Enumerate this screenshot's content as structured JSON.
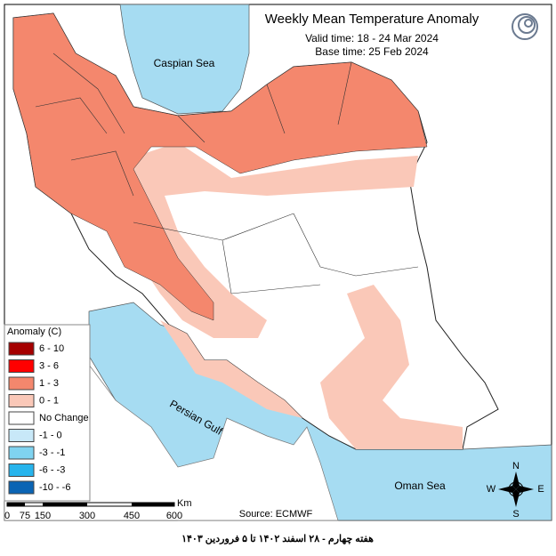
{
  "header": {
    "title": "Weekly Mean Temperature Anomaly",
    "valid_time": "Valid time: 18 - 24 Mar 2024",
    "base_time": "Base time: 25 Feb 2024"
  },
  "map": {
    "labels": [
      "Caspian Sea",
      "Persian Gulf",
      "Oman Sea"
    ],
    "source": "Source: ECMWF"
  },
  "legend": {
    "title": "Anomaly (C)",
    "items": [
      {
        "label": "6 - 10",
        "color": "#a50000"
      },
      {
        "label": "3 - 6",
        "color": "#ff0000"
      },
      {
        "label": "1 - 3",
        "color": "#f4876d"
      },
      {
        "label": "0 - 1",
        "color": "#fac8b8"
      },
      {
        "label": "No Change",
        "color": "#ffffff"
      },
      {
        "label": "-1 - 0",
        "color": "#c8e8f8"
      },
      {
        "label": "-3 - -1",
        "color": "#7fd3f0"
      },
      {
        "label": "-6 - -3",
        "color": "#27b4ec"
      },
      {
        "label": "-10 - -6",
        "color": "#0a64b4"
      }
    ]
  },
  "scale_bar": {
    "labels": [
      "0",
      "75",
      "150",
      "300",
      "450",
      "600"
    ],
    "unit": "Km"
  },
  "compass": {
    "north": "N",
    "east": "E",
    "south": "S",
    "west": "W"
  },
  "footer": "هفته چهارم - ۲۸ اسفند ۱۴۰۲ تا ۵ فروردین ۱۴۰۳"
}
